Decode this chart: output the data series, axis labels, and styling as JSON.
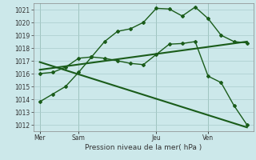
{
  "title": "Pression niveau de la mer( hPa )",
  "background_color": "#cce8ea",
  "grid_color": "#aacccc",
  "line_color": "#1a5c1a",
  "ylim": [
    1011.5,
    1021.5
  ],
  "yticks": [
    1012,
    1013,
    1014,
    1015,
    1016,
    1017,
    1018,
    1019,
    1020,
    1021
  ],
  "xtick_labels": [
    "Mer",
    "Sam",
    "Jeu",
    "Ven"
  ],
  "xtick_positions": [
    0,
    3,
    9,
    13
  ],
  "total_points": 17,
  "series": [
    {
      "x": [
        0,
        1,
        2,
        3,
        4,
        5,
        6,
        7,
        8,
        9,
        10,
        11,
        12,
        13,
        14,
        15,
        16
      ],
      "y": [
        1013.8,
        1014.4,
        1015.0,
        1016.1,
        1017.3,
        1018.5,
        1019.3,
        1019.5,
        1020.0,
        1021.1,
        1021.05,
        1020.5,
        1021.2,
        1020.3,
        1019.0,
        1018.5,
        1018.4
      ],
      "marker": true,
      "linewidth": 1.0
    },
    {
      "x": [
        0,
        1,
        2,
        3,
        4,
        5,
        6,
        7,
        8,
        9,
        10,
        11,
        12,
        13,
        14,
        15,
        16
      ],
      "y": [
        1016.0,
        1016.1,
        1016.5,
        1017.2,
        1017.3,
        1017.2,
        1017.0,
        1016.8,
        1016.7,
        1017.5,
        1018.3,
        1018.35,
        1018.5,
        1015.8,
        1015.3,
        1013.5,
        1012.0
      ],
      "marker": true,
      "linewidth": 1.0
    },
    {
      "x": [
        0,
        16
      ],
      "y": [
        1016.3,
        1018.5
      ],
      "marker": false,
      "linewidth": 1.5
    },
    {
      "x": [
        0,
        16
      ],
      "y": [
        1016.9,
        1011.8
      ],
      "marker": false,
      "linewidth": 1.5
    }
  ]
}
